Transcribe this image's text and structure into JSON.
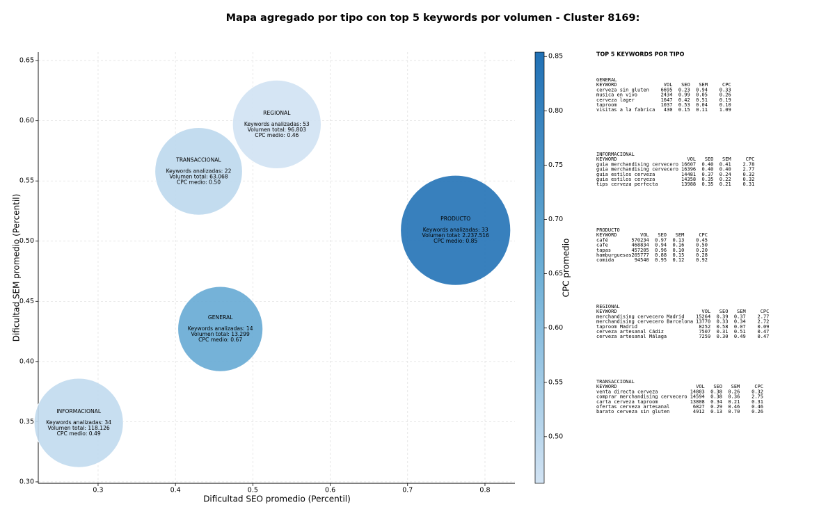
{
  "chart_data": {
    "type": "bubble",
    "title": "Mapa agregado por tipo con top 5 keywords por volumen - Cluster 8169:",
    "xlabel": "Dificultad SEO promedio (Percentil)",
    "ylabel": "Dificultad SEM promedio (Percentil)",
    "xlim": [
      0.2227,
      0.8387
    ],
    "ylim": [
      0.2988,
      0.657
    ],
    "xticks": [
      0.3,
      0.4,
      0.5,
      0.6,
      0.7,
      0.8
    ],
    "yticks": [
      {
        "value": 0.3,
        "label": "0.30"
      },
      0.35,
      {
        "value": 0.4,
        "label": "0.40"
      },
      0.45,
      {
        "value": 0.5,
        "label": "0.50"
      },
      0.55,
      {
        "value": 0.6,
        "label": "0.60"
      },
      0.65
    ],
    "grid": true,
    "colormap": "Blues",
    "colorbar_label": "CPC promedio",
    "clim": [
      0.457,
      0.854
    ],
    "cticks": [
      {
        "value": 0.5,
        "label": "0.50"
      },
      0.55,
      {
        "value": 0.6,
        "label": "0.60"
      },
      0.65,
      {
        "value": 0.7,
        "label": "0.70"
      },
      0.75,
      {
        "value": 0.8,
        "label": "0.80"
      },
      0.85
    ],
    "points": [
      {
        "name": "GENERAL",
        "x": 0.458,
        "y": 0.427,
        "volume": 13299,
        "cpc": 0.67,
        "labels": [
          "Keywords analizadas: 14",
          "Volumen total: 13.299",
          "CPC medio: 0.67"
        ]
      },
      {
        "name": "INFORMACIONAL",
        "x": 0.275,
        "y": 0.349,
        "volume": 118126,
        "cpc": 0.49,
        "labels": [
          "Keywords analizadas: 34",
          "Volumen total: 118.126",
          "CPC medio: 0.49"
        ]
      },
      {
        "name": "PRODUCTO",
        "x": 0.762,
        "y": 0.509,
        "volume": 2237516,
        "cpc": 0.85,
        "labels": [
          "Keywords analizadas: 33",
          "Volumen total: 2.237.516",
          "CPC medio: 0.85"
        ]
      },
      {
        "name": "REGIONAL",
        "x": 0.531,
        "y": 0.597,
        "volume": 96803,
        "cpc": 0.46,
        "labels": [
          "Keywords analizadas: 53",
          "Volumen total: 96.803",
          "CPC medio: 0.46"
        ]
      },
      {
        "name": "TRANSACCIONAL",
        "x": 0.43,
        "y": 0.558,
        "volume": 63068,
        "cpc": 0.5,
        "labels": [
          "Keywords analizadas: 22",
          "Volumen total: 63.068",
          "CPC medio: 0.50"
        ]
      }
    ],
    "panel": {
      "title": "TOP 5 KEYWORDS POR TIPO",
      "columns": [
        "KEYWORD",
        "VOL",
        "SEO",
        "SEM",
        "CPC"
      ],
      "groups": [
        {
          "name": "GENERAL",
          "rows": [
            [
              "cerveza sin gluten",
              "6695",
              "0.23",
              "0.94",
              "0.33"
            ],
            [
              "musica en vivo",
              "2434",
              "0.99",
              "0.05",
              "0.26"
            ],
            [
              "cerveza lager",
              "1647",
              "0.42",
              "0.51",
              "0.19"
            ],
            [
              "taproom",
              "1037",
              "0.53",
              "0.04",
              "0.10"
            ],
            [
              "visitas a la fabrica",
              "430",
              "0.15",
              "0.11",
              "1.09"
            ]
          ]
        },
        {
          "name": "INFORMACIONAL",
          "rows": [
            [
              "guia merchandising cervecero",
              "16607",
              "0.40",
              "0.41",
              "2.78"
            ],
            [
              "guia merchandising cervecero",
              "16396",
              "0.40",
              "0.40",
              "2.77"
            ],
            [
              "guia estilos cerveza",
              "14481",
              "0.37",
              "0.24",
              "0.32"
            ],
            [
              "guia estilos cerveza",
              "14358",
              "0.35",
              "0.22",
              "0.32"
            ],
            [
              "tips cerveza perfecta",
              "13988",
              "0.35",
              "0.21",
              "0.31"
            ]
          ]
        },
        {
          "name": "PRODUCTO",
          "rows": [
            [
              "café",
              "570234",
              "0.97",
              "0.13",
              "0.45"
            ],
            [
              "cafe",
              "468834",
              "0.94",
              "0.16",
              "0.50"
            ],
            [
              "tapas",
              "457205",
              "0.96",
              "0.10",
              "0.20"
            ],
            [
              "hamburguesas",
              "205777",
              "0.88",
              "0.15",
              "0.28"
            ],
            [
              "comida",
              "94540",
              "0.95",
              "0.12",
              "0.92"
            ]
          ]
        },
        {
          "name": "REGIONAL",
          "rows": [
            [
              "merchandising cervecero Madrid",
              "15264",
              "0.39",
              "0.37",
              "2.77"
            ],
            [
              "merchandising cervecero Barcelona",
              "13770",
              "0.33",
              "0.34",
              "2.72"
            ],
            [
              "taproom Madrid",
              "8252",
              "0.58",
              "0.07",
              "0.09"
            ],
            [
              "cerveza artesanal Cádiz",
              "7507",
              "0.31",
              "0.51",
              "0.47"
            ],
            [
              "cerveza artesanal Málaga",
              "7259",
              "0.30",
              "0.49",
              "0.47"
            ]
          ]
        },
        {
          "name": "TRANSACCIONAL",
          "rows": [
            [
              "venta directa cerveza",
              "14803",
              "0.38",
              "0.26",
              "0.32"
            ],
            [
              "comprar merchandising cervecero",
              "14594",
              "0.38",
              "0.36",
              "2.75"
            ],
            [
              "carta cerveza taproom",
              "13808",
              "0.34",
              "0.21",
              "0.31"
            ],
            [
              "ofertas cerveza artesanal",
              "6827",
              "0.29",
              "0.46",
              "0.46"
            ],
            [
              "barato cerveza sin gluten",
              "4912",
              "0.13",
              "0.70",
              "0.26"
            ]
          ]
        }
      ]
    }
  }
}
